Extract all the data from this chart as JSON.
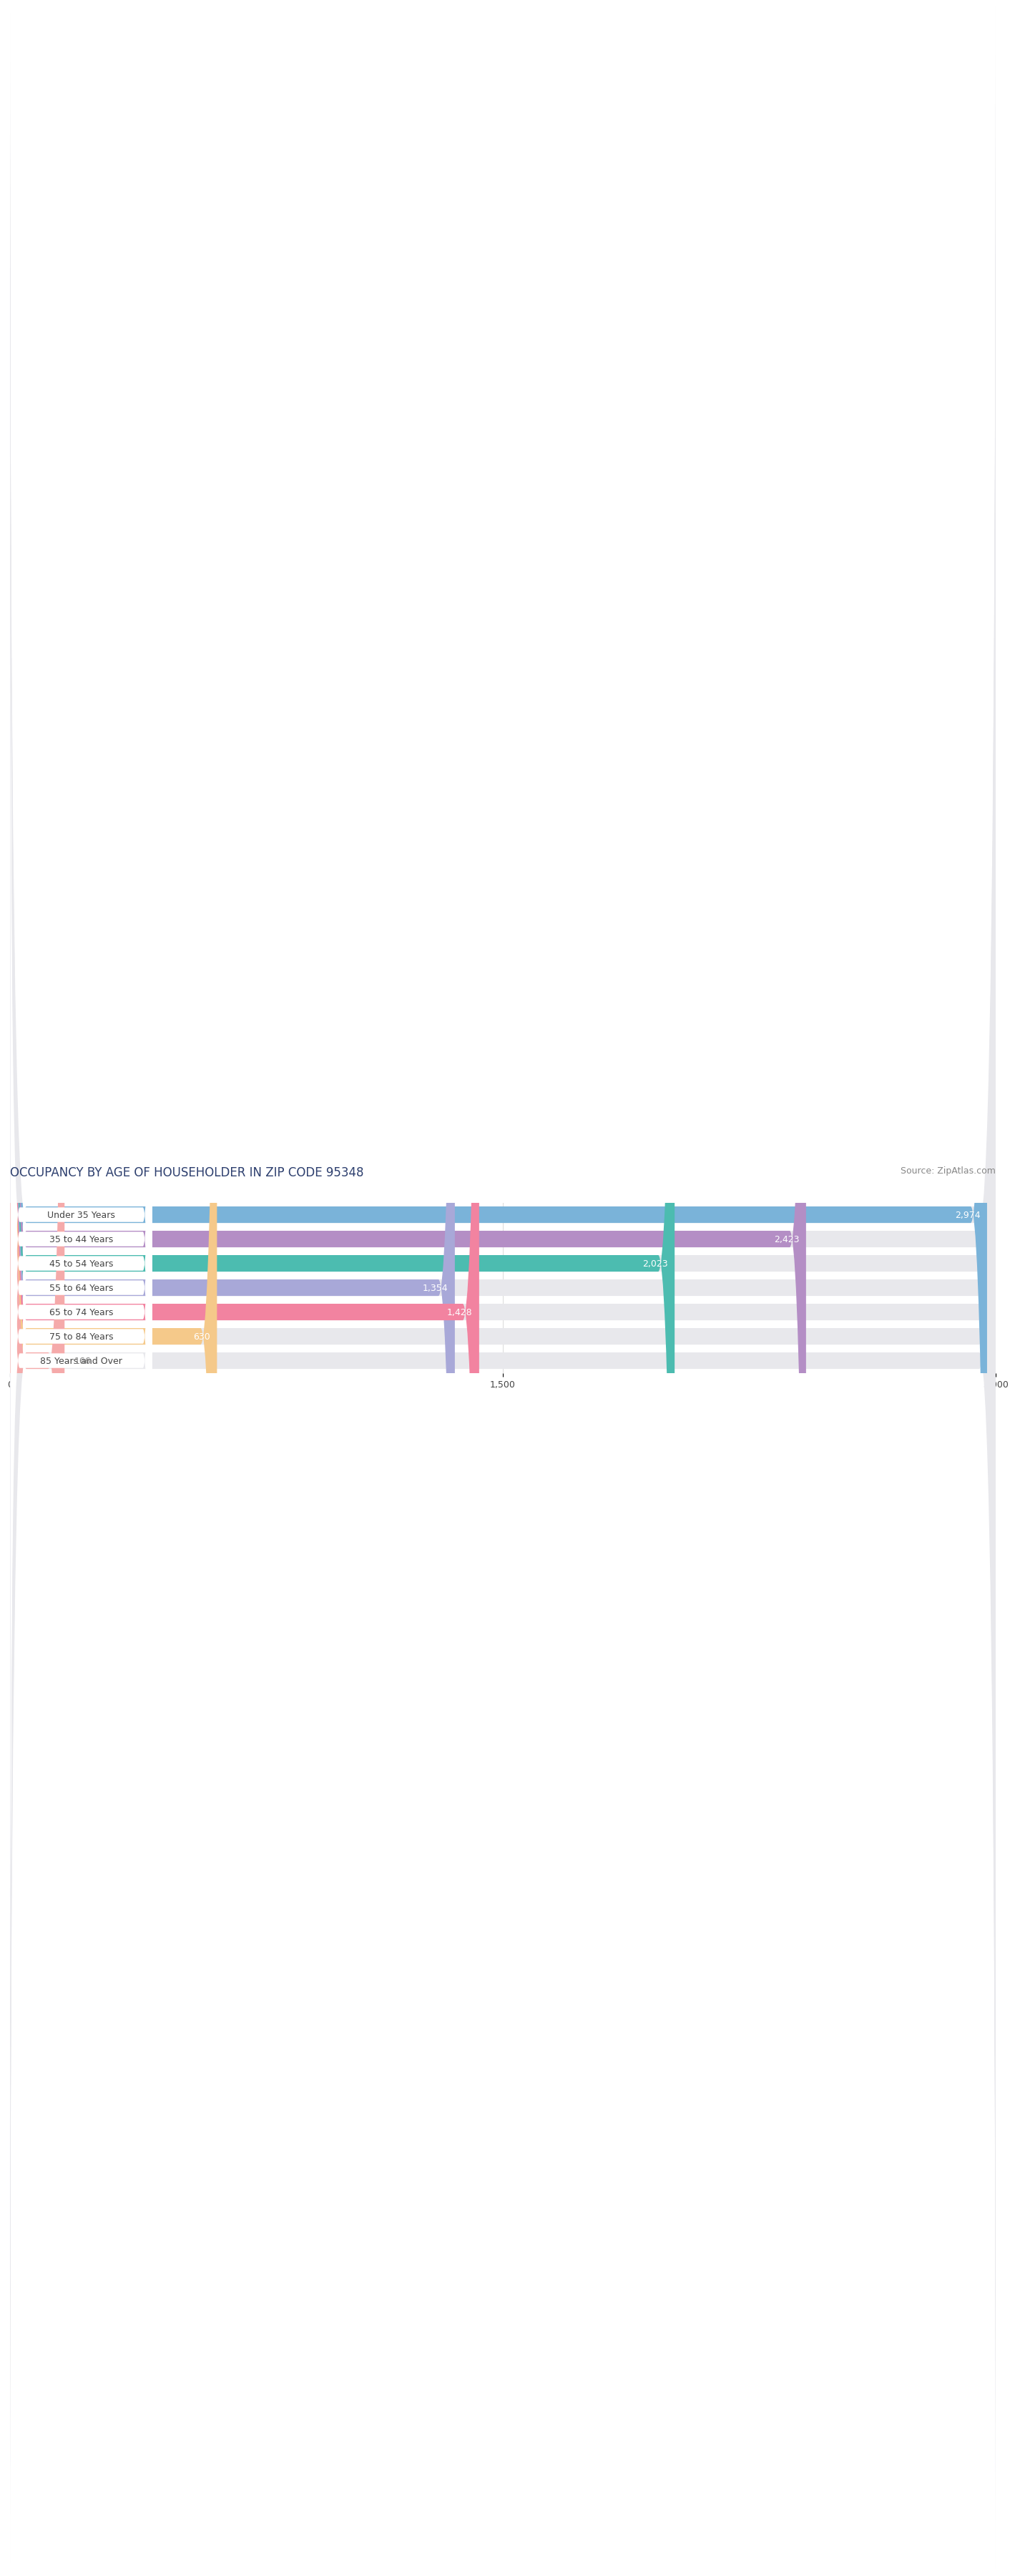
{
  "title": "OCCUPANCY BY AGE OF HOUSEHOLDER IN ZIP CODE 95348",
  "source": "Source: ZipAtlas.com",
  "categories": [
    "Under 35 Years",
    "35 to 44 Years",
    "45 to 54 Years",
    "55 to 64 Years",
    "65 to 74 Years",
    "75 to 84 Years",
    "85 Years and Over"
  ],
  "values": [
    2974,
    2423,
    2023,
    1354,
    1428,
    630,
    166
  ],
  "bar_colors": [
    "#7ab3d9",
    "#b48ec5",
    "#4cbcb0",
    "#a8a8d8",
    "#f283a0",
    "#f5c98a",
    "#f5aaaa"
  ],
  "xlim": [
    0,
    3000
  ],
  "xticks": [
    0,
    1500,
    3000
  ],
  "xtick_labels": [
    "0",
    "1,500",
    "3,000"
  ],
  "background_color": "#ffffff",
  "bar_bg_color": "#e8e8ec",
  "title_color": "#2d3f6e",
  "source_color": "#888888",
  "label_text_color": "#444444",
  "value_color_inside": "#ffffff",
  "value_color_outside": "#888888",
  "title_fontsize": 12,
  "source_fontsize": 9,
  "tick_fontsize": 9,
  "bar_label_fontsize": 9,
  "value_fontsize": 9,
  "bar_height": 0.68,
  "rounding_size": 50
}
